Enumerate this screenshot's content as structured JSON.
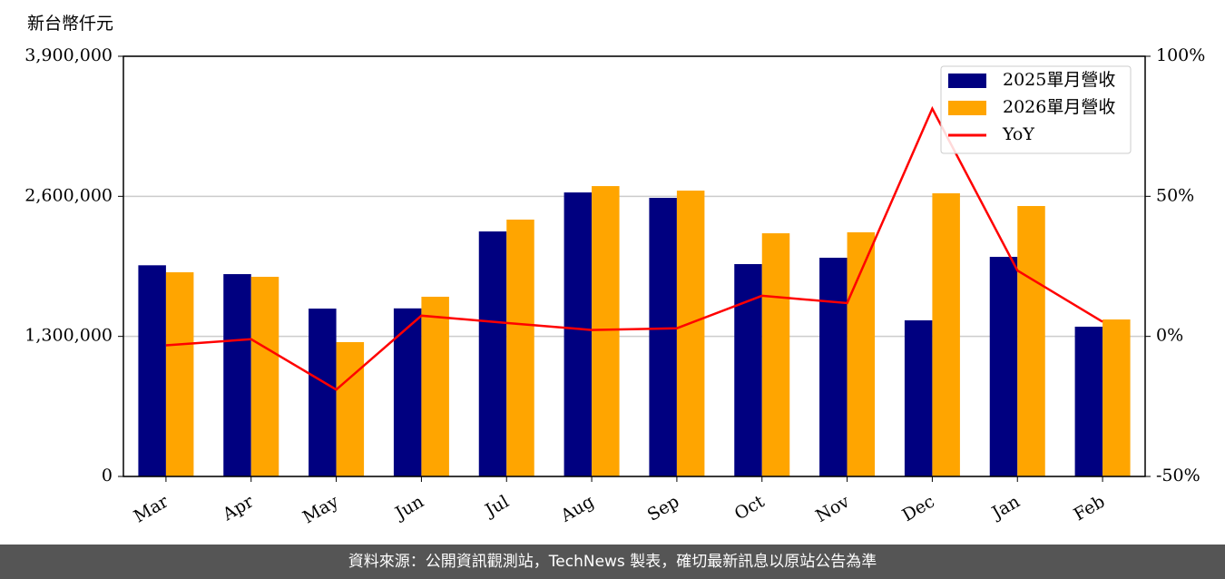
{
  "chart_data": {
    "type": "bar_line",
    "y_label": "新台幣仟元",
    "categories": [
      "Mar",
      "Apr",
      "May",
      "Jun",
      "Jul",
      "Aug",
      "Sep",
      "Oct",
      "Nov",
      "Dec",
      "Jan",
      "Feb"
    ],
    "series": [
      {
        "name": "2025單月營收",
        "color": "#000080",
        "type": "bar",
        "values": [
          1960000,
          1878000,
          1558000,
          1560000,
          2274000,
          2636000,
          2586000,
          1971000,
          2030000,
          1449000,
          2038000,
          1390000
        ]
      },
      {
        "name": "2026單月營收",
        "color": "#ffa500",
        "type": "bar",
        "values": [
          1895000,
          1853000,
          1247000,
          1668000,
          2384000,
          2695000,
          2653000,
          2257000,
          2266000,
          2628000,
          2510000,
          1457000
        ]
      },
      {
        "name": "YoY",
        "color": "#ff0000",
        "type": "line",
        "axis": "y2",
        "values": [
          -3.2,
          -1,
          -19,
          7.4,
          4.8,
          2.3,
          2.9,
          14.5,
          11.9,
          81.3,
          23.5,
          5.2
        ]
      }
    ],
    "ylim": [
      0,
      3900000
    ],
    "yticks": [
      0,
      {
        "value": 1300000,
        "label": "1,300,000"
      },
      {
        "value": 2600000,
        "label": "2,600,000"
      },
      {
        "value": 3900000,
        "label": "3,900,000"
      }
    ],
    "y2lim": [
      -50,
      100
    ],
    "y2ticks": [
      {
        "value": -50,
        "label": "-50%"
      },
      {
        "value": 0,
        "label": "0%"
      },
      {
        "value": 50,
        "label": "50%"
      },
      {
        "value": 100,
        "label": "100%"
      }
    ],
    "grid": true,
    "legend": "upper right",
    "footer": "資料來源：公開資訊觀測站，TechNews 製表，確切最新訊息以原站公告為準"
  }
}
